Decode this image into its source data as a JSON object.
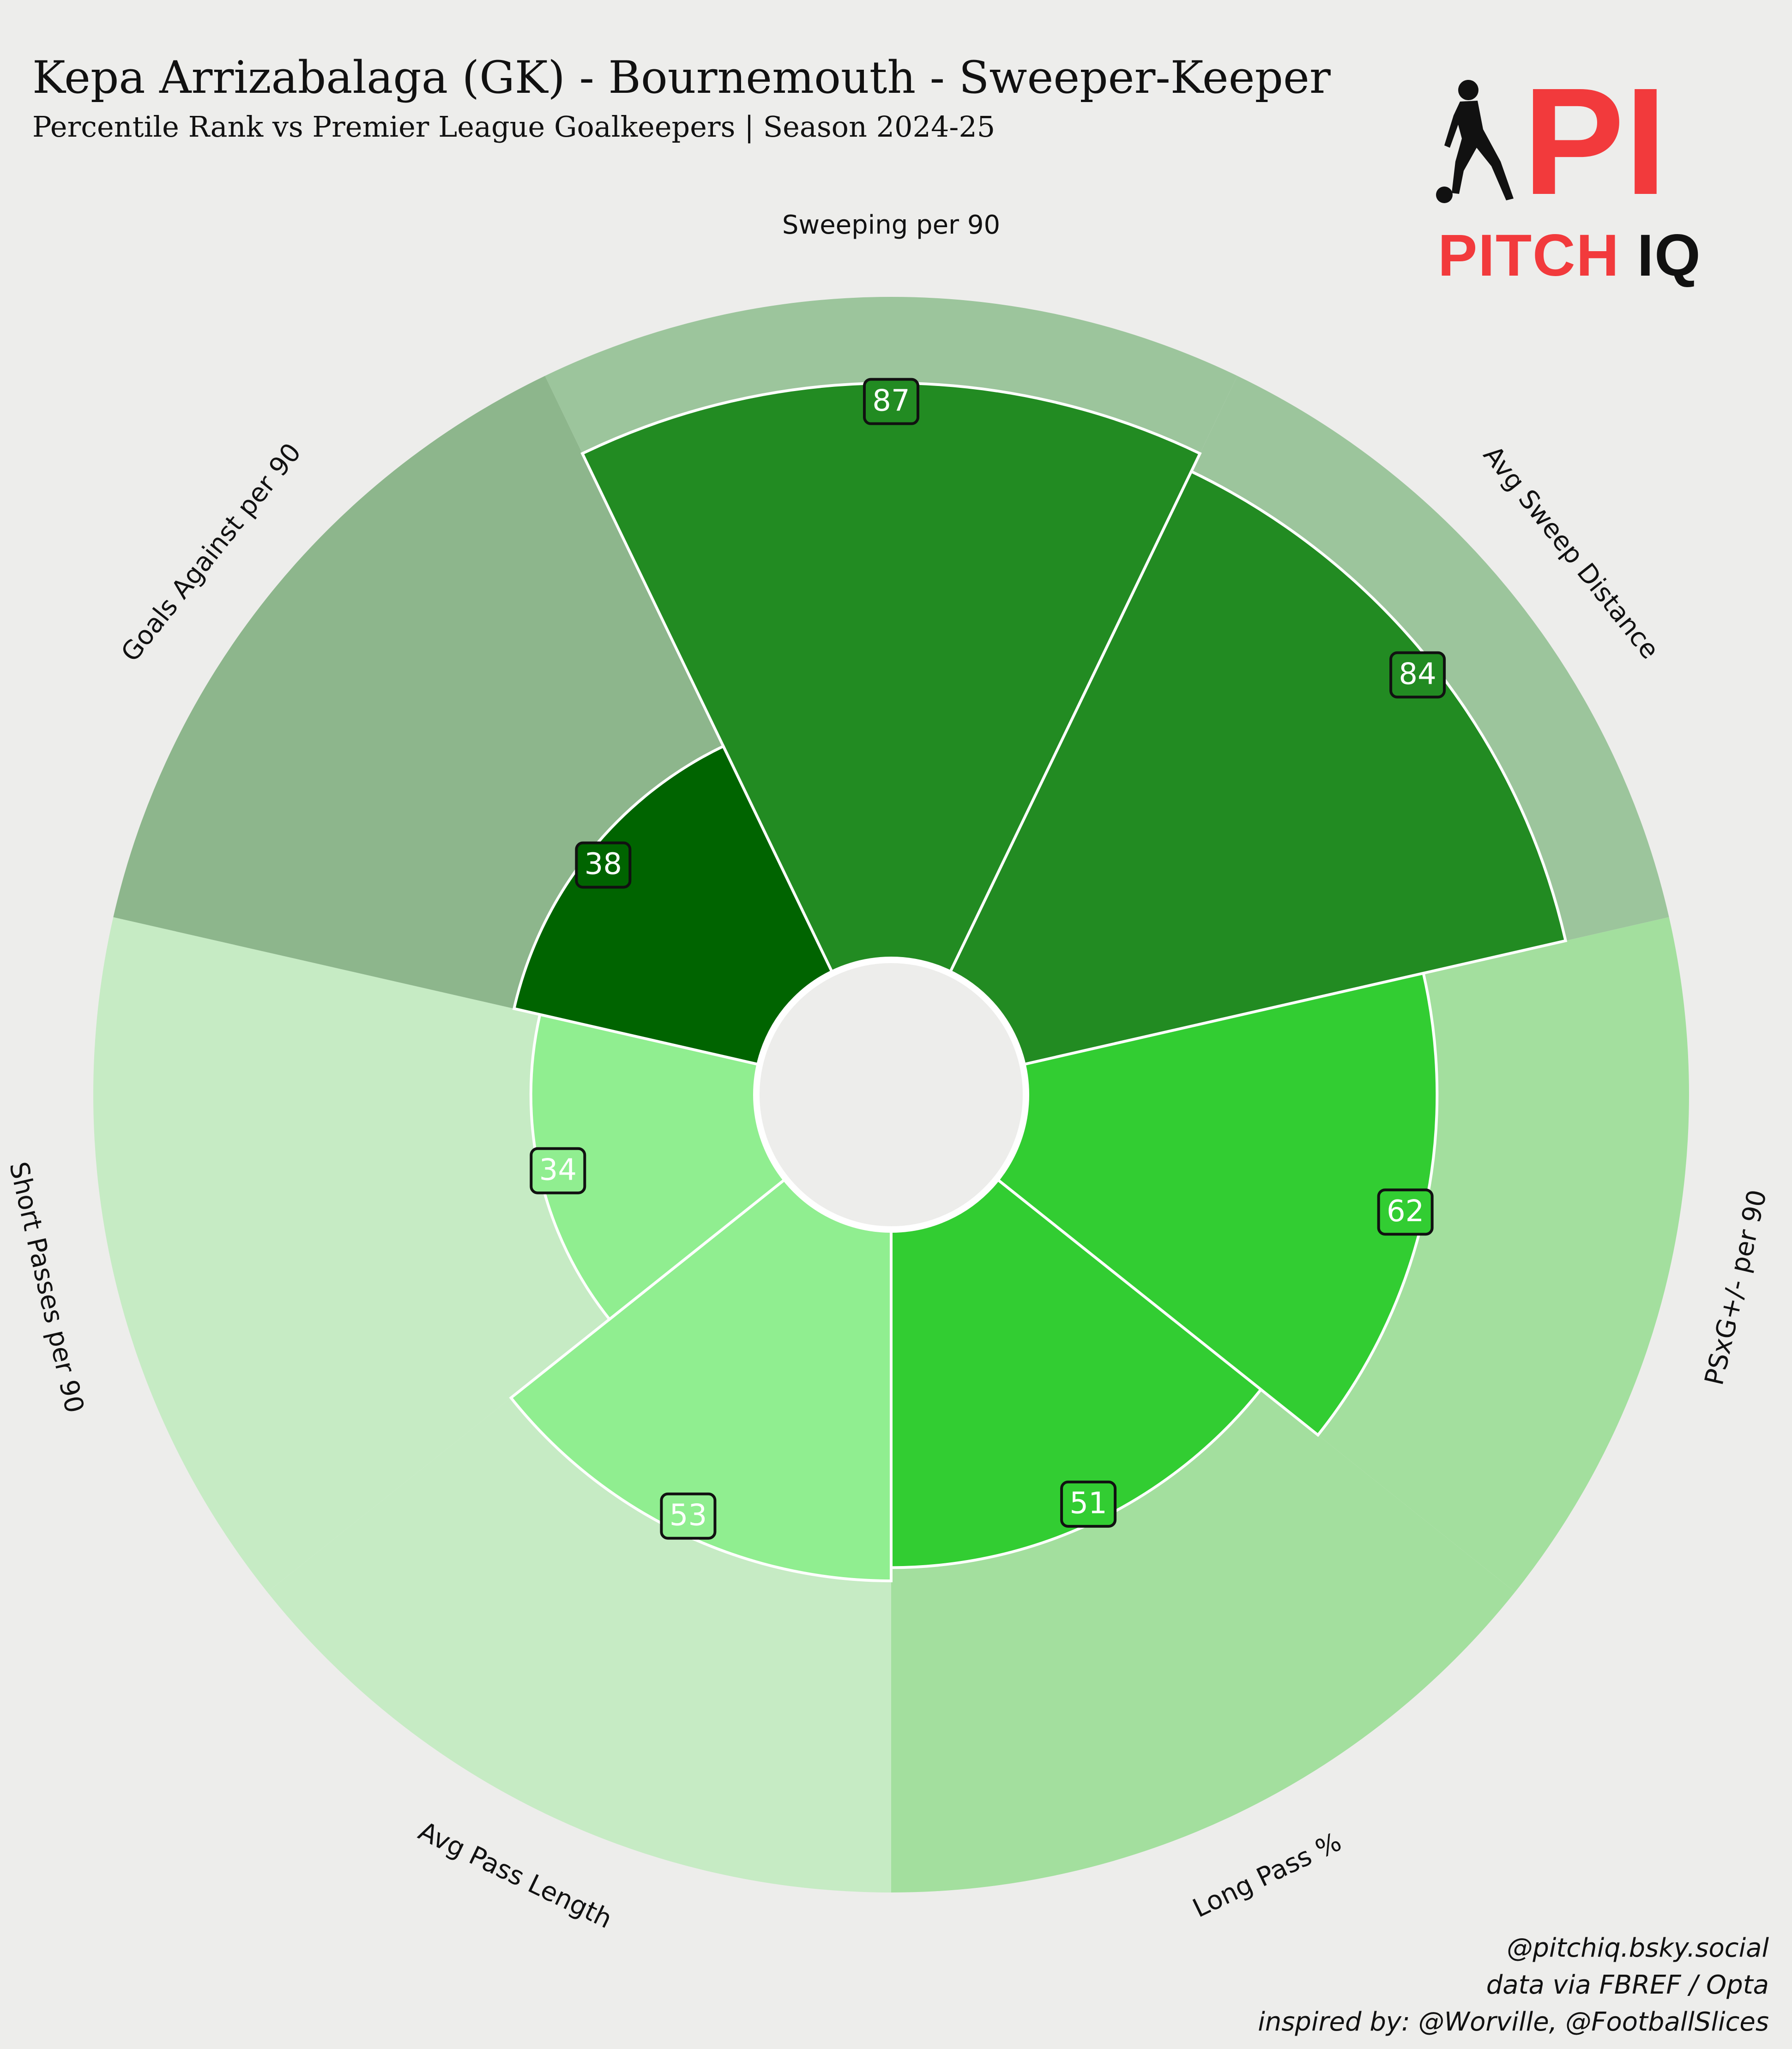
{
  "header": {
    "title": "Kepa Arrizabalaga (GK) - Bournemouth - Sweeper-Keeper",
    "subtitle": "Percentile Rank vs Premier League Goalkeepers | Season 2024-25"
  },
  "logo": {
    "word_1": "PITCH",
    "word_2": "IQ",
    "mark": "PI",
    "icon": "footballer-silhouette-icon",
    "brand_color": "#f23a3c"
  },
  "credits": [
    "@pitchiq.bsky.social",
    "data via FBREF / Opta",
    "inspired by: @Worville, @FootballSlices"
  ],
  "chart_data": {
    "type": "pizza",
    "scale": "percentile",
    "rlim": [
      0,
      100
    ],
    "categories": [
      "Sweeping per 90",
      "Avg Sweep Distance",
      "PSxG+/- per 90",
      "Long Pass %",
      "Avg Pass Length",
      "Short Passes per 90",
      "Goals Against per 90"
    ],
    "values": [
      87,
      84,
      62,
      51,
      53,
      34,
      38
    ],
    "slice_colors": [
      "#228b22",
      "#228b22",
      "#32cd32",
      "#32cd32",
      "#90ee90",
      "#90ee90",
      "#006400"
    ],
    "background_colors": [
      "#9cc59c",
      "#9cc59c",
      "#a3df9e",
      "#a3df9e",
      "#c6ebc4",
      "#c6ebc4",
      "#8db68c"
    ],
    "value_box_colors": [
      "#228b22",
      "#228b22",
      "#32cd32",
      "#32cd32",
      "#90ee90",
      "#90ee90",
      "#006400"
    ],
    "label_position": "outside",
    "grid": false,
    "background": "#ededeb"
  }
}
